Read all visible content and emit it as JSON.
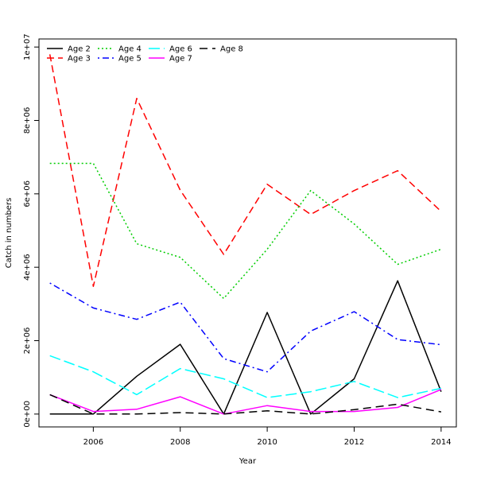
{
  "chart_data": {
    "type": "line",
    "title": "",
    "xlabel": "Year",
    "ylabel": "Catch in numbers",
    "xlim": [
      2004.75,
      2014.35
    ],
    "ylim": [
      -350000,
      10220000
    ],
    "x_ticks": [
      2006,
      2008,
      2010,
      2012,
      2014
    ],
    "x_tick_labels": [
      "2006",
      "2008",
      "2010",
      "2012",
      "2014"
    ],
    "y_ticks": [
      0,
      2000000,
      4000000,
      6000000,
      8000000,
      10000000
    ],
    "y_tick_labels": [
      "0e+00",
      "2e+06",
      "4e+06",
      "6e+06",
      "8e+06",
      "1e+07"
    ],
    "grid": false,
    "legend_position": "top-left",
    "x": [
      2005,
      2006,
      2007,
      2008,
      2009,
      2010,
      2011,
      2012,
      2013,
      2014
    ],
    "series": [
      {
        "name": "Age 2",
        "color": "#000000",
        "dash": "solid",
        "values": [
          0,
          0,
          1030000,
          1900000,
          0,
          2770000,
          0,
          960000,
          3630000,
          610000
        ]
      },
      {
        "name": "Age 3",
        "color": "#ff0000",
        "dash": "dashed",
        "values": [
          9800000,
          3480000,
          8600000,
          6100000,
          4350000,
          6260000,
          5440000,
          6090000,
          6630000,
          5520000
        ]
      },
      {
        "name": "Age 4",
        "color": "#00cd00",
        "dash": "dotted",
        "values": [
          6830000,
          6830000,
          4640000,
          4270000,
          3150000,
          4490000,
          6090000,
          5180000,
          4080000,
          4490000
        ]
      },
      {
        "name": "Age 5",
        "color": "#0000ff",
        "dash": "dotdash",
        "values": [
          3570000,
          2890000,
          2580000,
          3050000,
          1510000,
          1150000,
          2260000,
          2790000,
          2030000,
          1890000
        ]
      },
      {
        "name": "Age 6",
        "color": "#00ffff",
        "dash": "longdash",
        "values": [
          1590000,
          1150000,
          530000,
          1240000,
          960000,
          450000,
          610000,
          890000,
          450000,
          700000
        ]
      },
      {
        "name": "Age 7",
        "color": "#ff00ff",
        "dash": "solid",
        "values": [
          530000,
          70000,
          130000,
          470000,
          0,
          230000,
          70000,
          70000,
          180000,
          670000
        ]
      },
      {
        "name": "Age 8",
        "color": "#000000",
        "dash": "longdash2",
        "values": [
          530000,
          0,
          0,
          40000,
          0,
          90000,
          0,
          120000,
          270000,
          60000
        ]
      }
    ]
  }
}
